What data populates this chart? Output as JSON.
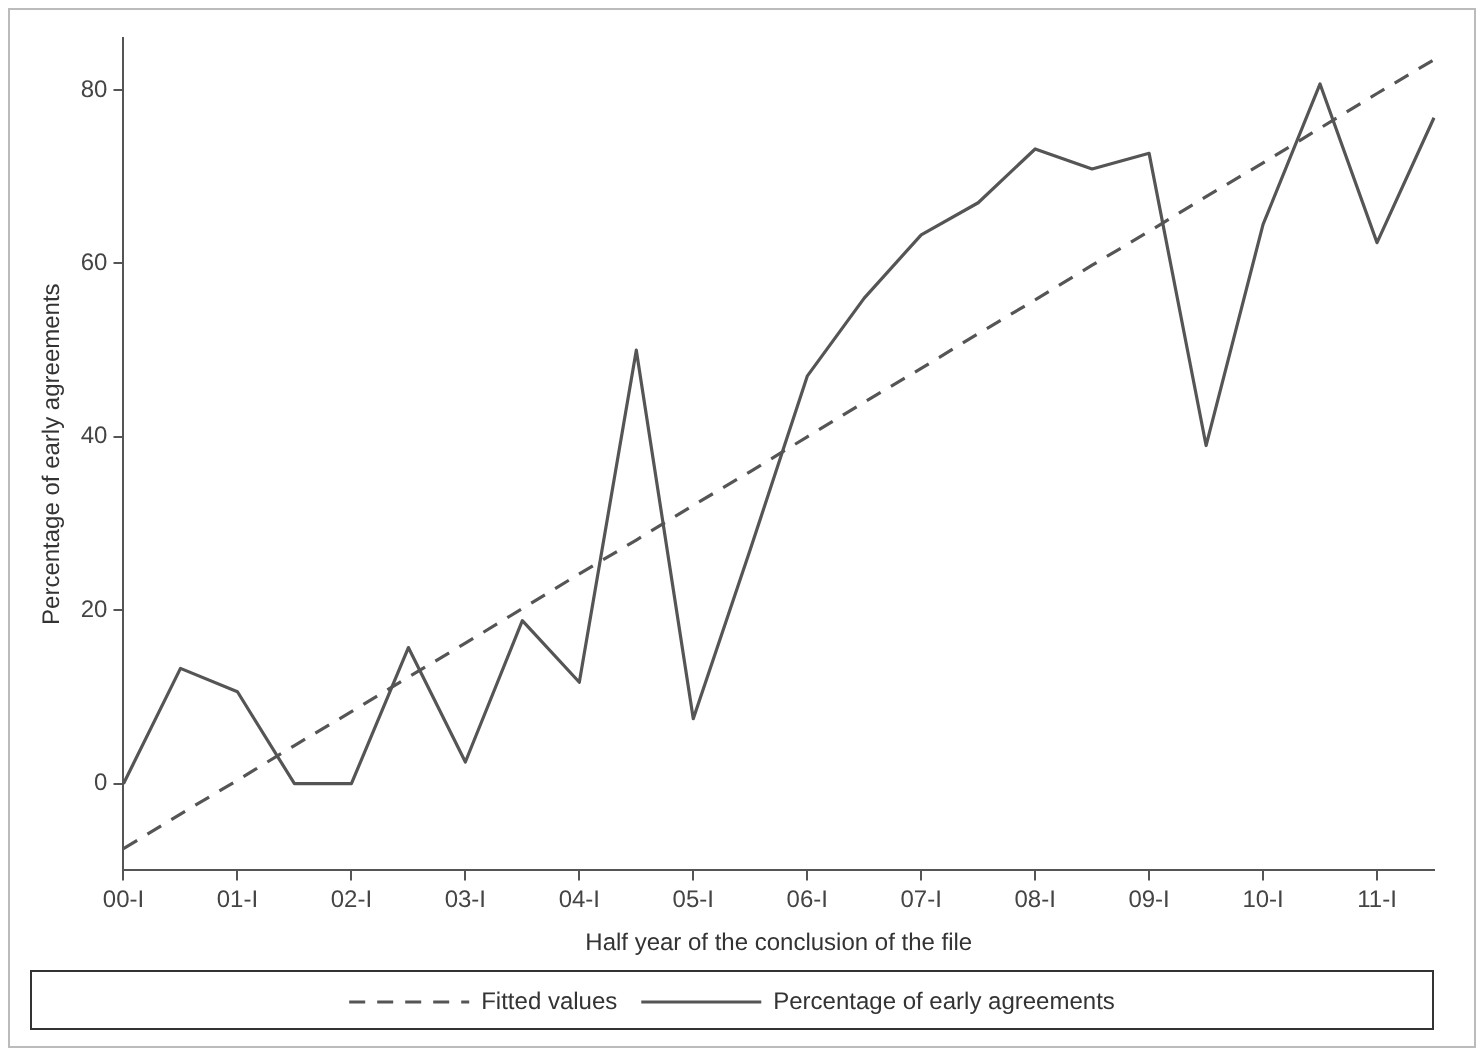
{
  "chart_data": {
    "type": "line",
    "xlabel": "Half year of the conclusion of the file",
    "ylabel": "Percentage of early agreements",
    "categories": [
      "00-I",
      null,
      "01-I",
      null,
      "02-I",
      null,
      "03-I",
      null,
      "04-I",
      null,
      "05-I",
      null,
      "06-I",
      null,
      "07-I",
      null,
      "08-I",
      null,
      "09-I",
      null,
      "10-I",
      null,
      "11-I",
      null
    ],
    "series": [
      {
        "name": "Fitted values",
        "color": "#555555",
        "line_style": "dashed",
        "values": [
          -7.5,
          -3.5,
          0.4,
          4.4,
          8.3,
          12.3,
          16.2,
          20.2,
          24.2,
          28.1,
          32.1,
          36.0,
          40.0,
          44.0,
          47.9,
          51.9,
          55.8,
          59.8,
          63.7,
          67.7,
          71.6,
          75.6,
          79.6,
          83.5
        ]
      },
      {
        "name": "Percentage of early agreements",
        "color": "#555555",
        "line_style": "solid",
        "values": [
          0,
          13.3,
          10.6,
          0,
          0,
          15.7,
          2.5,
          18.8,
          11.7,
          50,
          7.5,
          27,
          47,
          56,
          63.3,
          67,
          73.2,
          70.9,
          72.7,
          39,
          64.5,
          80.7,
          62.4,
          76.8
        ]
      }
    ],
    "ylim": [
      -10,
      86
    ],
    "yticks": [
      0,
      20,
      40,
      60,
      80
    ],
    "grid": false,
    "legend": "bottom",
    "marker": "none"
  }
}
